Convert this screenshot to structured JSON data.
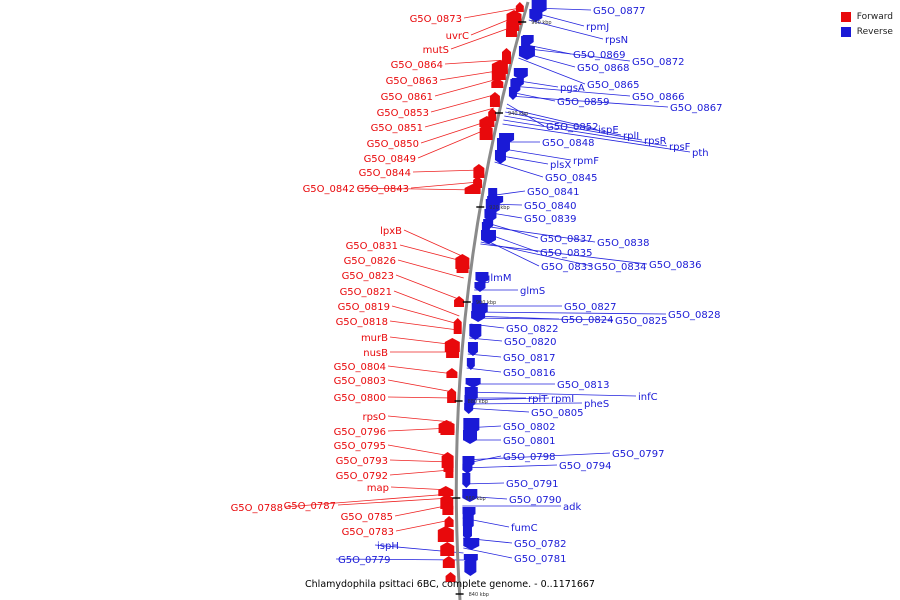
{
  "colors": {
    "forward": "#e8090c",
    "reverse": "#1a1ad6",
    "backbone": "#8a8a8a",
    "label_line_fwd": "#ee2222",
    "label_line_rev": "#2222dd"
  },
  "legend": [
    {
      "label": "Forward",
      "color": "#e8090c"
    },
    {
      "label": "Reverse",
      "color": "#1a1ad6"
    }
  ],
  "caption": "Chlamydophila psittaci 6BC, complete genome. - 0..1171667",
  "kbp_marks": [
    "960 kbp",
    "940 kbp",
    "920 kbp",
    "900 kbp",
    "880 kbp",
    "860 kbp",
    "840 kbp"
  ],
  "forward_genes": [
    "G5O_0873",
    "uvrC",
    "mutS",
    "G5O_0864",
    "G5O_0863",
    "G5O_0861",
    "G5O_0853",
    "G5O_0851",
    "G5O_0850",
    "G5O_0849",
    "G5O_0844",
    "G5O_0843",
    "G5O_0842",
    "lpxB",
    "G5O_0831",
    "G5O_0826",
    "G5O_0823",
    "G5O_0821",
    "G5O_0819",
    "G5O_0818",
    "murB",
    "nusB",
    "G5O_0804",
    "G5O_0803",
    "G5O_0800",
    "rpsO",
    "G5O_0796",
    "G5O_0795",
    "G5O_0793",
    "G5O_0792",
    "map",
    "G5O_0788",
    "G5O_0787",
    "G5O_0785",
    "G5O_0783"
  ],
  "reverse_genes": [
    "G5O_0877",
    "rpmJ",
    "rpsN",
    "G5O_0869",
    "G5O_0872",
    "G5O_0868",
    "G5O_0865",
    "pgsA",
    "G5O_0866",
    "G5O_0859",
    "G5O_0867",
    "G5O_0852",
    "ispE",
    "rplI",
    "rpsR",
    "rpsF",
    "pth",
    "G5O_0848",
    "rpmF",
    "plsX",
    "G5O_0845",
    "G5O_0841",
    "G5O_0840",
    "G5O_0839",
    "G5O_0837",
    "G5O_0838",
    "G5O_0835",
    "G5O_0833",
    "G5O_0834",
    "G5O_0836",
    "glmM",
    "glmS",
    "G5O_0827",
    "G5O_0828",
    "G5O_0824",
    "G5O_0825",
    "G5O_0822",
    "G5O_0820",
    "G5O_0817",
    "G5O_0816",
    "G5O_0813",
    "infC",
    "rplT",
    "rpmI",
    "pheS",
    "G5O_0805",
    "G5O_0802",
    "G5O_0801",
    "G5O_0797",
    "G5O_0798",
    "G5O_0794",
    "G5O_0791",
    "G5O_0790",
    "adk",
    "fumC",
    "G5O_0782",
    "G5O_0781",
    "ispH",
    "G5O_0779"
  ]
}
